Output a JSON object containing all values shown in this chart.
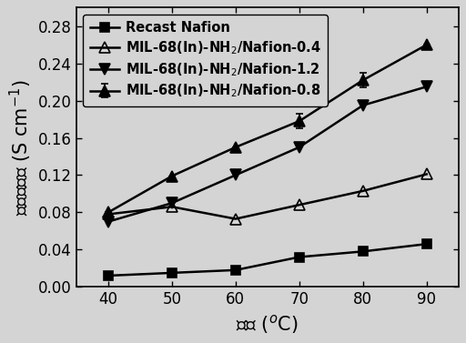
{
  "x": [
    40,
    50,
    60,
    70,
    80,
    90
  ],
  "series": [
    {
      "label": "Recast Nafion",
      "y": [
        0.012,
        0.015,
        0.018,
        0.032,
        0.038,
        0.046
      ],
      "marker": "s",
      "fillstyle": "full",
      "markersize": 7,
      "linestyle": "-"
    },
    {
      "label": "MIL-68(In)-NH$_2$/Nafion-0.4",
      "y": [
        0.078,
        0.086,
        0.073,
        0.088,
        0.103,
        0.121
      ],
      "marker": "^",
      "fillstyle": "none",
      "markersize": 8,
      "linestyle": "-"
    },
    {
      "label": "MIL-68(In)-NH$_2$/Nafion-0.8",
      "y": [
        0.08,
        0.119,
        0.15,
        0.178,
        0.222,
        0.26
      ],
      "marker": "^",
      "fillstyle": "full",
      "markersize": 8,
      "linestyle": "-",
      "has_errorbar": true
    },
    {
      "label": "MIL-68(In)-NH$_2$/Nafion-1.2",
      "y": [
        0.07,
        0.09,
        0.12,
        0.15,
        0.195,
        0.215
      ],
      "marker": "v",
      "fillstyle": "full",
      "markersize": 8,
      "linestyle": "-"
    }
  ],
  "error_y": [
    0,
    0,
    0,
    0.008,
    0.008,
    0
  ],
  "xlim": [
    35,
    95
  ],
  "ylim": [
    0.0,
    0.3
  ],
  "yticks": [
    0.0,
    0.04,
    0.08,
    0.12,
    0.16,
    0.2,
    0.24,
    0.28
  ],
  "xticks": [
    40,
    50,
    60,
    70,
    80,
    90
  ],
  "background_color": "#d4d4d4",
  "linewidth": 1.8,
  "label_fontsize": 15,
  "tick_fontsize": 12,
  "legend_fontsize": 10.5
}
